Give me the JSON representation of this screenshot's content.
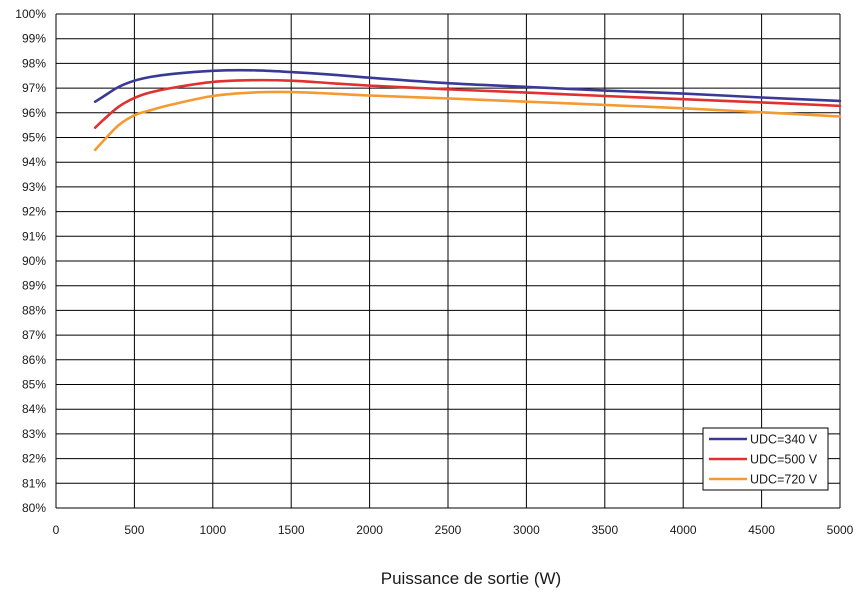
{
  "chart_data": {
    "type": "line",
    "title": "",
    "xlabel": "Puissance de sortie (W)",
    "ylabel": "",
    "xlim": [
      0,
      5000
    ],
    "ylim": [
      80,
      100
    ],
    "x_ticks": [
      "0",
      "500",
      "1000",
      "1500",
      "2000",
      "2500",
      "3000",
      "3500",
      "4000",
      "4500",
      "5000"
    ],
    "y_ticks": [
      "80%",
      "81%",
      "82%",
      "83%",
      "84%",
      "85%",
      "86%",
      "87%",
      "88%",
      "89%",
      "90%",
      "91%",
      "92%",
      "93%",
      "94%",
      "95%",
      "96%",
      "97%",
      "98%",
      "99%",
      "100%"
    ],
    "grid": true,
    "legend_position": "bottom-right",
    "series": [
      {
        "name": "UDC=340 V",
        "color": "#3a3a96",
        "x": [
          250,
          300,
          400,
          500,
          600,
          750,
          1000,
          1250,
          1500,
          1750,
          2000,
          2500,
          3000,
          3500,
          4000,
          4500,
          5000
        ],
        "y": [
          96.45,
          96.65,
          97.05,
          97.3,
          97.45,
          97.58,
          97.7,
          97.72,
          97.65,
          97.55,
          97.42,
          97.2,
          97.05,
          96.9,
          96.78,
          96.62,
          96.48
        ]
      },
      {
        "name": "UDC=500 V",
        "color": "#e03030",
        "x": [
          250,
          300,
          400,
          500,
          600,
          750,
          1000,
          1250,
          1500,
          1750,
          2000,
          2500,
          3000,
          3500,
          4000,
          4500,
          5000
        ],
        "y": [
          95.4,
          95.7,
          96.25,
          96.6,
          96.82,
          97.02,
          97.25,
          97.32,
          97.3,
          97.2,
          97.1,
          96.95,
          96.82,
          96.68,
          96.55,
          96.42,
          96.28
        ]
      },
      {
        "name": "UDC=720 V",
        "color": "#f59a30",
        "x": [
          250,
          300,
          400,
          500,
          600,
          750,
          1000,
          1250,
          1500,
          1750,
          2000,
          2500,
          3000,
          3500,
          4000,
          4500,
          5000
        ],
        "y": [
          94.5,
          94.85,
          95.5,
          95.9,
          96.1,
          96.35,
          96.68,
          96.82,
          96.84,
          96.78,
          96.7,
          96.58,
          96.45,
          96.32,
          96.18,
          96.02,
          95.85
        ]
      }
    ]
  }
}
